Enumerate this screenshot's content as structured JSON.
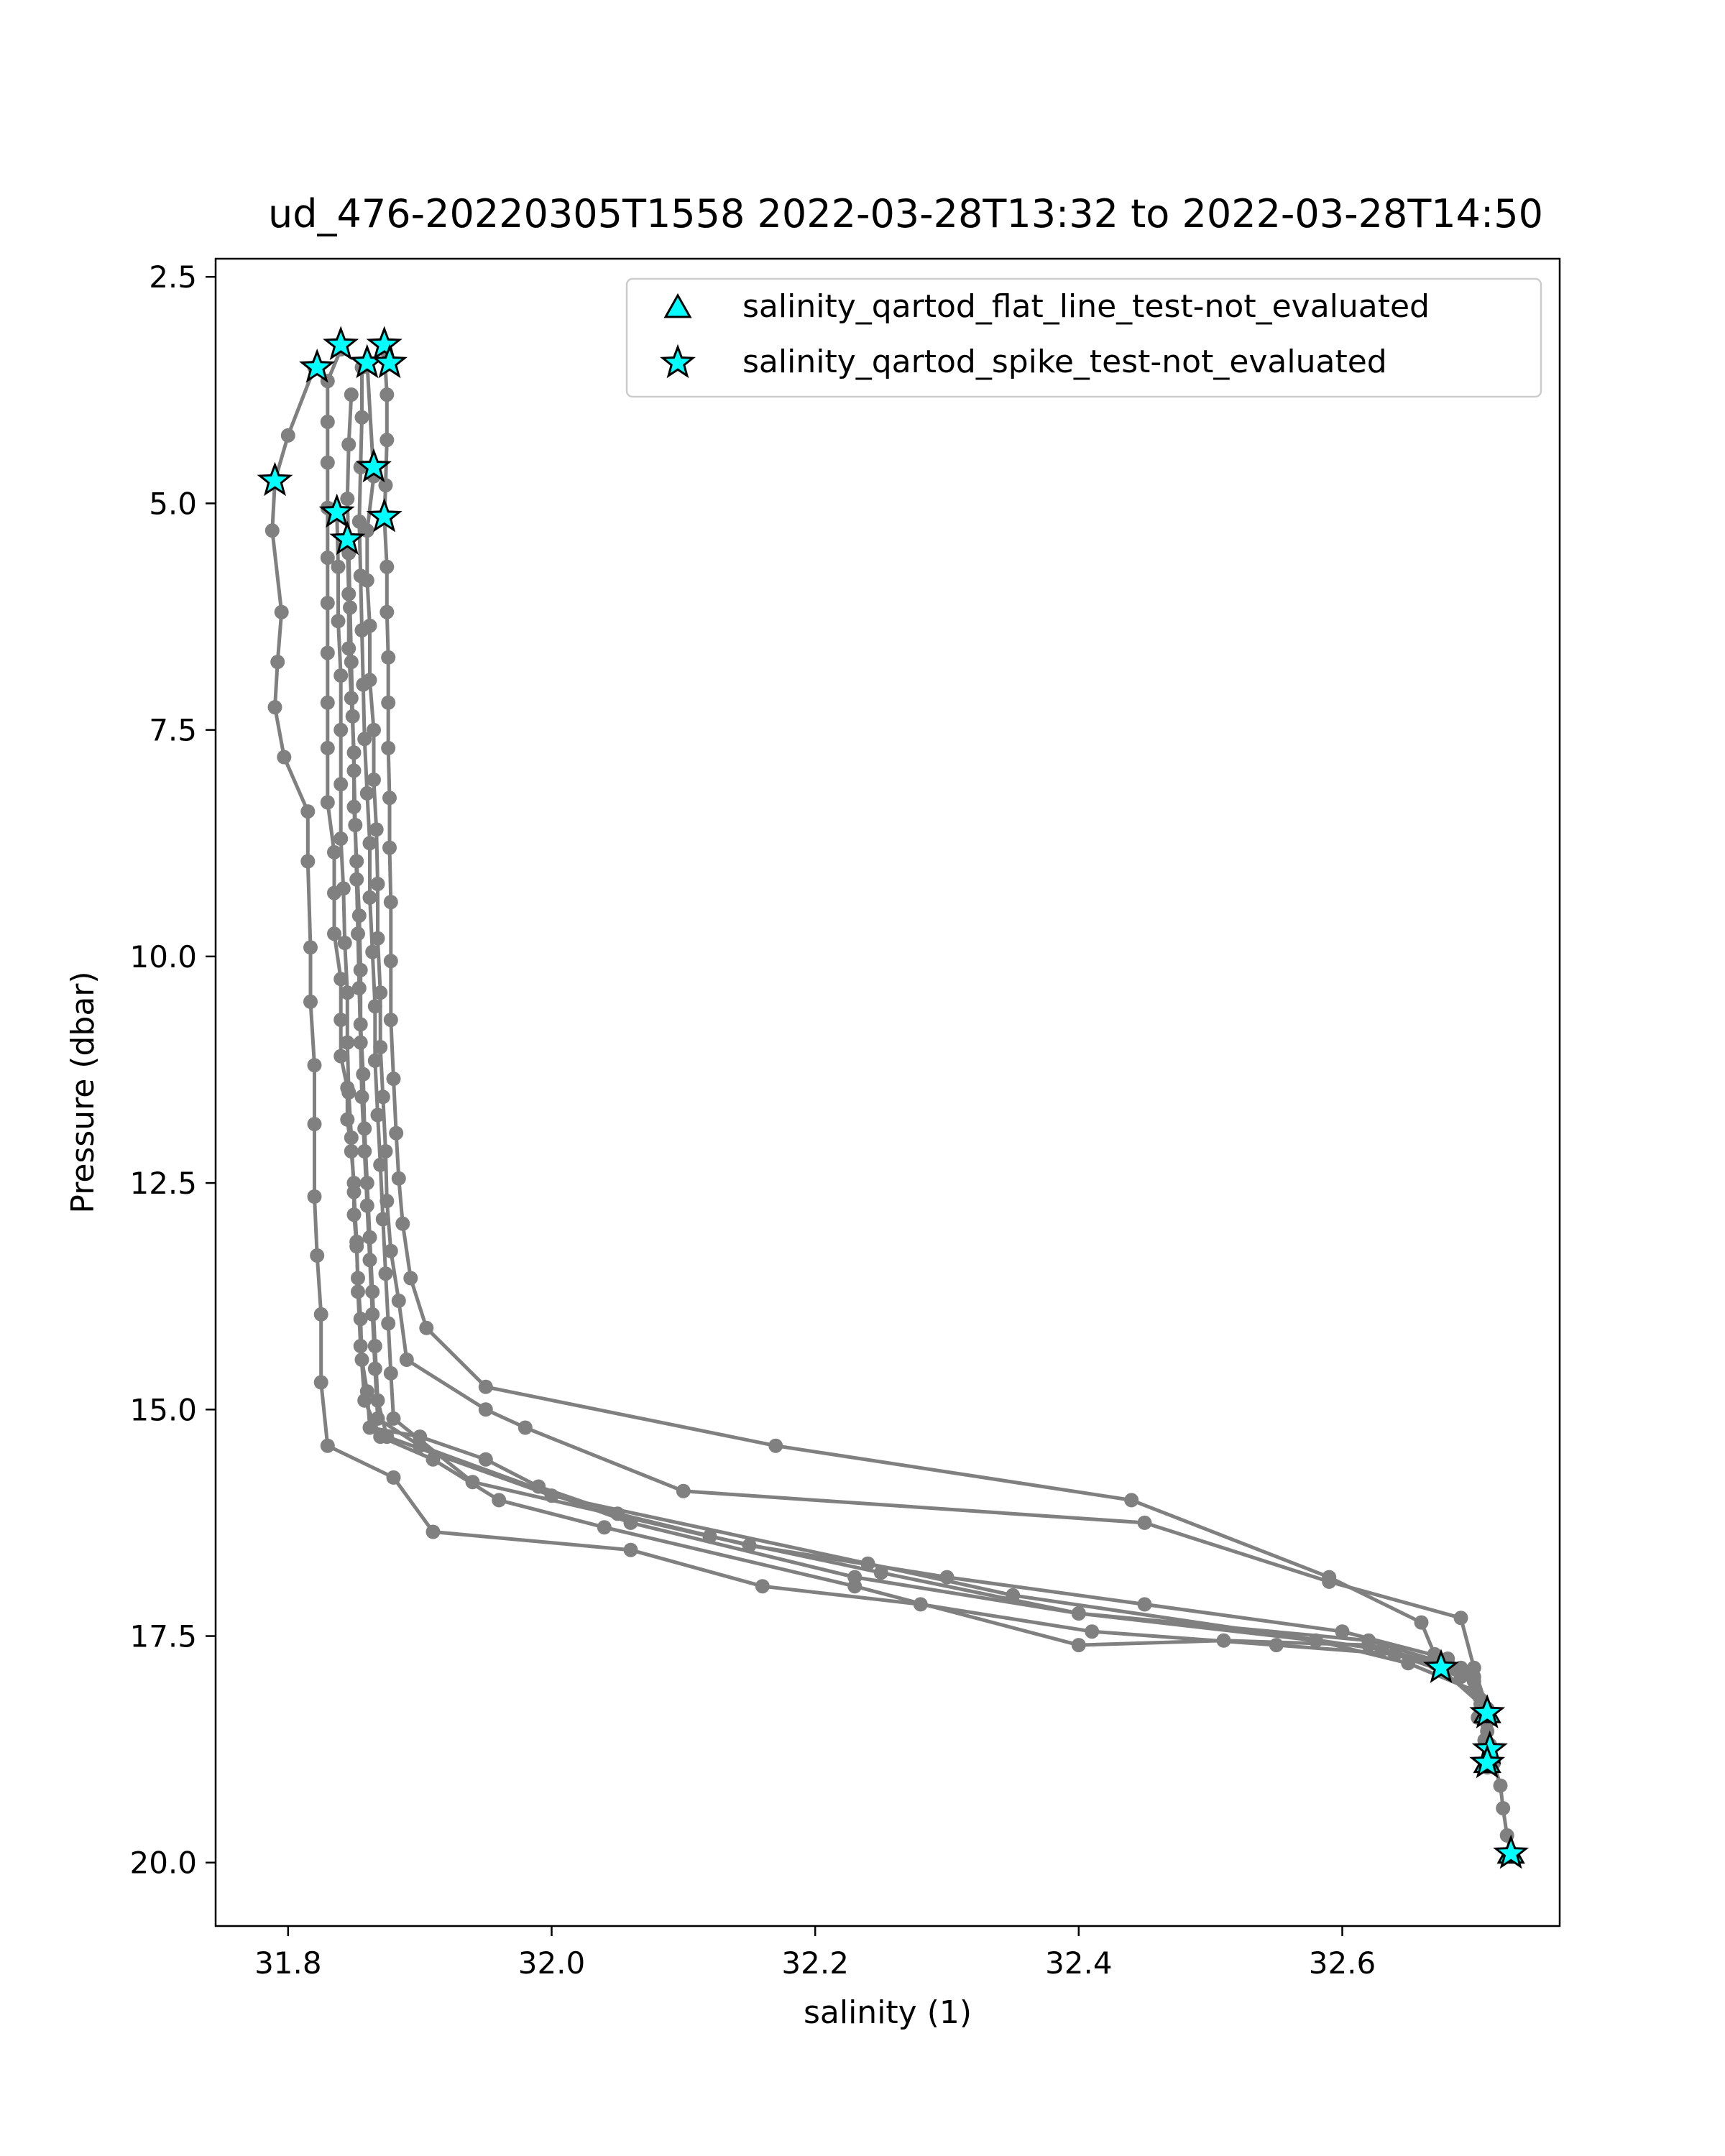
{
  "chart_data": {
    "type": "scatter",
    "title": "ud_476-20220305T1558 2022-03-28T13:32 to 2022-03-28T14:50",
    "xlabel": "salinity (1)",
    "ylabel": "Pressure (dbar)",
    "xlim": [
      31.745,
      32.765
    ],
    "ylim": [
      20.7,
      2.3
    ],
    "y_inverted": true,
    "x_ticks": [
      "31.8",
      "32.0",
      "32.2",
      "32.4",
      "32.6"
    ],
    "y_ticks": [
      "2.5",
      "5.0",
      "7.5",
      "10.0",
      "12.5",
      "15.0",
      "17.5",
      "20.0"
    ],
    "grid": false,
    "legend_position": "top-right",
    "colors": {
      "profile_line": "#808080",
      "profile_marker": "#808080",
      "flag_fill": "#00ffff",
      "flag_edge": "#000000"
    },
    "legend": [
      {
        "label": "salinity_qartod_flat_line_test-not_evaluated",
        "marker": "triangle"
      },
      {
        "label": "salinity_qartod_spike_test-not_evaluated",
        "marker": "star"
      }
    ],
    "series": [
      {
        "points": [
          [
            31.84,
            3.3
          ],
          [
            31.83,
            3.65
          ],
          [
            31.83,
            4.1
          ],
          [
            31.83,
            4.55
          ],
          [
            31.83,
            5.05
          ],
          [
            31.83,
            5.6
          ],
          [
            31.83,
            6.1
          ],
          [
            31.83,
            6.65
          ],
          [
            31.83,
            7.2
          ],
          [
            31.83,
            7.7
          ],
          [
            31.83,
            8.3
          ],
          [
            31.835,
            8.85
          ],
          [
            31.835,
            9.3
          ],
          [
            31.835,
            9.75
          ],
          [
            31.84,
            10.25
          ],
          [
            31.84,
            10.7
          ],
          [
            31.84,
            11.1
          ],
          [
            31.845,
            11.45
          ],
          [
            31.845,
            11.8
          ],
          [
            31.848,
            12.15
          ],
          [
            31.85,
            12.5
          ],
          [
            31.85,
            12.85
          ],
          [
            31.852,
            13.2
          ],
          [
            31.853,
            13.55
          ],
          [
            31.855,
            14.0
          ],
          [
            31.856,
            14.45
          ],
          [
            31.86,
            14.8
          ],
          [
            31.862,
            15.2
          ],
          [
            31.9,
            15.3
          ],
          [
            31.95,
            15.55
          ],
          [
            31.99,
            15.85
          ],
          [
            32.05,
            16.15
          ],
          [
            32.15,
            16.5
          ],
          [
            32.3,
            16.85
          ],
          [
            32.45,
            17.15
          ],
          [
            32.6,
            17.45
          ],
          [
            32.68,
            17.75
          ],
          [
            32.7,
            17.95
          ],
          [
            32.705,
            18.2
          ],
          [
            32.71,
            18.45
          ],
          [
            32.712,
            18.7
          ],
          [
            32.715,
            18.9
          ],
          [
            32.72,
            19.15
          ],
          [
            32.722,
            19.4
          ],
          [
            32.725,
            19.7
          ],
          [
            32.728,
            19.9
          ]
        ]
      },
      {
        "points": [
          [
            31.82,
            3.5
          ],
          [
            31.8,
            4.25
          ],
          [
            31.79,
            4.75
          ],
          [
            31.788,
            5.3
          ],
          [
            31.795,
            6.2
          ],
          [
            31.792,
            6.75
          ],
          [
            31.79,
            7.25
          ],
          [
            31.797,
            7.8
          ],
          [
            31.815,
            8.4
          ],
          [
            31.815,
            8.95
          ],
          [
            31.817,
            9.9
          ],
          [
            31.817,
            10.5
          ],
          [
            31.82,
            11.2
          ],
          [
            31.82,
            11.85
          ],
          [
            31.82,
            12.65
          ],
          [
            31.822,
            13.3
          ],
          [
            31.825,
            13.95
          ],
          [
            31.825,
            14.7
          ],
          [
            31.83,
            15.4
          ],
          [
            31.88,
            15.75
          ],
          [
            31.91,
            16.35
          ],
          [
            32.06,
            16.55
          ],
          [
            32.16,
            16.95
          ],
          [
            32.28,
            17.15
          ],
          [
            32.41,
            17.45
          ],
          [
            32.55,
            17.6
          ],
          [
            32.64,
            17.7
          ],
          [
            32.68,
            17.85
          ]
        ]
      },
      {
        "points": [
          [
            31.873,
            3.3
          ],
          [
            31.875,
            3.8
          ],
          [
            31.875,
            4.3
          ],
          [
            31.874,
            4.8
          ],
          [
            31.873,
            5.15
          ],
          [
            31.875,
            5.7
          ],
          [
            31.875,
            6.2
          ],
          [
            31.876,
            6.7
          ],
          [
            31.876,
            7.2
          ],
          [
            31.876,
            7.7
          ],
          [
            31.877,
            8.25
          ],
          [
            31.877,
            8.8
          ],
          [
            31.878,
            9.4
          ],
          [
            31.878,
            10.05
          ],
          [
            31.878,
            10.7
          ],
          [
            31.88,
            11.35
          ],
          [
            31.882,
            11.95
          ],
          [
            31.884,
            12.45
          ],
          [
            31.887,
            12.95
          ],
          [
            31.893,
            13.55
          ],
          [
            31.905,
            14.1
          ],
          [
            31.95,
            14.75
          ],
          [
            32.17,
            15.4
          ],
          [
            32.44,
            16.0
          ],
          [
            32.59,
            16.85
          ],
          [
            32.66,
            17.35
          ],
          [
            32.67,
            17.7
          ],
          [
            32.69,
            17.95
          ]
        ]
      },
      {
        "points": [
          [
            31.86,
            3.45
          ],
          [
            31.865,
            4.7
          ],
          [
            31.86,
            5.3
          ],
          [
            31.86,
            5.85
          ],
          [
            31.862,
            6.35
          ],
          [
            31.862,
            6.95
          ],
          [
            31.865,
            7.5
          ],
          [
            31.865,
            8.05
          ],
          [
            31.867,
            8.6
          ],
          [
            31.868,
            9.2
          ],
          [
            31.868,
            9.8
          ],
          [
            31.87,
            10.4
          ],
          [
            31.87,
            11.0
          ],
          [
            31.872,
            11.55
          ],
          [
            31.874,
            12.15
          ],
          [
            31.875,
            12.7
          ],
          [
            31.878,
            13.25
          ],
          [
            31.884,
            13.8
          ],
          [
            31.89,
            14.45
          ],
          [
            31.95,
            15.0
          ],
          [
            31.98,
            15.2
          ],
          [
            32.1,
            15.9
          ],
          [
            32.45,
            16.25
          ],
          [
            32.59,
            16.9
          ],
          [
            32.69,
            17.3
          ],
          [
            32.7,
            17.85
          ],
          [
            32.71,
            18.3
          ]
        ]
      },
      {
        "points": [
          [
            31.837,
            5.1
          ],
          [
            31.838,
            5.7
          ],
          [
            31.838,
            6.3
          ],
          [
            31.84,
            6.9
          ],
          [
            31.84,
            7.5
          ],
          [
            31.84,
            8.1
          ],
          [
            31.84,
            8.7
          ],
          [
            31.842,
            9.25
          ],
          [
            31.843,
            9.85
          ],
          [
            31.845,
            10.4
          ],
          [
            31.845,
            10.95
          ],
          [
            31.846,
            11.5
          ],
          [
            31.848,
            12.0
          ],
          [
            31.85,
            12.6
          ],
          [
            31.852,
            13.15
          ],
          [
            31.853,
            13.7
          ],
          [
            31.855,
            14.3
          ],
          [
            31.858,
            14.9
          ],
          [
            31.87,
            15.3
          ],
          [
            31.91,
            15.55
          ],
          [
            31.96,
            16.0
          ],
          [
            32.04,
            16.3
          ],
          [
            32.23,
            16.95
          ],
          [
            32.4,
            17.6
          ],
          [
            32.51,
            17.55
          ],
          [
            32.62,
            17.6
          ],
          [
            32.67,
            17.8
          ],
          [
            32.705,
            18.25
          ],
          [
            32.71,
            18.55
          ]
        ]
      },
      {
        "points": [
          [
            31.845,
            5.45
          ],
          [
            31.846,
            6.0
          ],
          [
            31.846,
            6.6
          ],
          [
            31.848,
            7.15
          ],
          [
            31.85,
            7.75
          ],
          [
            31.85,
            8.35
          ],
          [
            31.852,
            8.95
          ],
          [
            31.854,
            9.55
          ],
          [
            31.855,
            10.15
          ],
          [
            31.855,
            10.75
          ],
          [
            31.857,
            11.3
          ],
          [
            31.858,
            11.9
          ],
          [
            31.86,
            12.5
          ],
          [
            31.862,
            13.1
          ],
          [
            31.864,
            13.7
          ],
          [
            31.866,
            14.3
          ],
          [
            31.868,
            14.9
          ],
          [
            31.875,
            15.3
          ],
          [
            32.0,
            15.95
          ],
          [
            32.24,
            16.7
          ],
          [
            32.35,
            17.05
          ],
          [
            32.63,
            17.65
          ],
          [
            32.7,
            18.0
          ],
          [
            32.705,
            18.35
          ],
          [
            32.708,
            18.65
          ],
          [
            32.71,
            18.95
          ]
        ]
      },
      {
        "points": [
          [
            31.856,
            3.5
          ],
          [
            31.856,
            4.05
          ],
          [
            31.855,
            4.6
          ],
          [
            31.854,
            5.2
          ],
          [
            31.855,
            5.8
          ],
          [
            31.856,
            6.4
          ],
          [
            31.857,
            7.0
          ],
          [
            31.858,
            7.6
          ],
          [
            31.86,
            8.2
          ],
          [
            31.862,
            8.75
          ],
          [
            31.862,
            9.35
          ],
          [
            31.864,
            9.95
          ],
          [
            31.866,
            10.55
          ],
          [
            31.866,
            11.15
          ],
          [
            31.868,
            11.75
          ],
          [
            31.87,
            12.3
          ],
          [
            31.872,
            12.9
          ],
          [
            31.874,
            13.5
          ],
          [
            31.876,
            14.05
          ],
          [
            31.878,
            14.6
          ],
          [
            31.88,
            15.1
          ],
          [
            31.94,
            15.8
          ],
          [
            32.12,
            16.4
          ],
          [
            32.25,
            16.8
          ],
          [
            32.4,
            17.25
          ],
          [
            32.62,
            17.55
          ],
          [
            32.69,
            17.85
          ],
          [
            32.7,
            18.1
          ],
          [
            32.703,
            18.4
          ]
        ]
      },
      {
        "points": [
          [
            31.848,
            3.8
          ],
          [
            31.846,
            4.35
          ],
          [
            31.845,
            4.95
          ],
          [
            31.846,
            5.55
          ],
          [
            31.847,
            6.15
          ],
          [
            31.848,
            6.75
          ],
          [
            31.849,
            7.35
          ],
          [
            31.85,
            7.95
          ],
          [
            31.851,
            8.55
          ],
          [
            31.852,
            9.15
          ],
          [
            31.853,
            9.75
          ],
          [
            31.854,
            10.35
          ],
          [
            31.855,
            10.95
          ],
          [
            31.856,
            11.55
          ],
          [
            31.858,
            12.15
          ],
          [
            31.86,
            12.75
          ],
          [
            31.862,
            13.35
          ],
          [
            31.864,
            13.95
          ],
          [
            31.866,
            14.55
          ],
          [
            31.868,
            15.1
          ],
          [
            31.9,
            15.4
          ],
          [
            32.06,
            16.25
          ],
          [
            32.23,
            16.85
          ],
          [
            32.4,
            17.25
          ],
          [
            32.58,
            17.55
          ],
          [
            32.65,
            17.8
          ],
          [
            32.7,
            18.1
          ]
        ]
      }
    ],
    "flag_stars": [
      [
        31.84,
        3.25
      ],
      [
        31.873,
        3.25
      ],
      [
        31.86,
        3.45
      ],
      [
        31.877,
        3.45
      ],
      [
        31.822,
        3.5
      ],
      [
        31.79,
        4.75
      ],
      [
        31.865,
        4.6
      ],
      [
        31.837,
        5.1
      ],
      [
        31.873,
        5.15
      ],
      [
        31.845,
        5.4
      ],
      [
        32.675,
        17.85
      ],
      [
        32.71,
        18.35
      ],
      [
        32.712,
        18.75
      ],
      [
        32.71,
        18.9
      ],
      [
        32.728,
        19.9
      ]
    ],
    "flag_triangles": [
      [
        32.71,
        18.35
      ],
      [
        32.71,
        18.9
      ],
      [
        32.728,
        19.9
      ]
    ]
  }
}
